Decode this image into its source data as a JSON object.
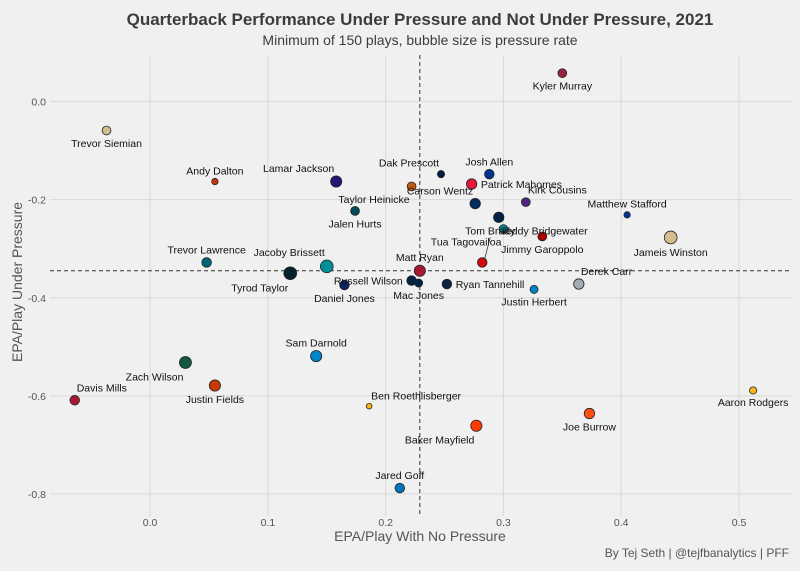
{
  "chart_data": {
    "type": "scatter",
    "title": "Quarterback Performance Under Pressure and Not Under Pressure, 2021",
    "subtitle": "Minimum of 150 plays, bubble size is pressure rate",
    "xlabel": "EPA/Play With No Pressure",
    "ylabel": "EPA/Play Under Pressure",
    "caption": "By Tej Seth | @tejfbanalytics | PFF",
    "xlim": [
      -0.085,
      0.545
    ],
    "ylim": [
      -0.845,
      0.095
    ],
    "x_ticks": [
      0.0,
      0.1,
      0.2,
      0.3,
      0.4,
      0.5
    ],
    "x_tick_labels": [
      "0.0",
      "0.1",
      "0.2",
      "0.3",
      "0.4",
      "0.5"
    ],
    "y_ticks": [
      0.0,
      -0.2,
      -0.4,
      -0.6,
      -0.8
    ],
    "y_tick_labels": [
      "0.0",
      "-0.2",
      "-0.4",
      "-0.6",
      "-0.8"
    ],
    "reference_lines": {
      "x_mean": 0.229,
      "y_mean": -0.345
    },
    "grid": true,
    "points": [
      {
        "name": "Kyler Murray",
        "x": 0.35,
        "y": 0.058,
        "size": 0.3,
        "color": "#97233f",
        "label_pos": "below"
      },
      {
        "name": "Trevor Siemian",
        "x": -0.037,
        "y": -0.059,
        "size": 0.3,
        "color": "#d3bc8d",
        "label_pos": "below"
      },
      {
        "name": "Andy Dalton",
        "x": 0.055,
        "y": -0.163,
        "size": 0.15,
        "color": "#c83803",
        "label_pos": "above"
      },
      {
        "name": "Lamar Jackson",
        "x": 0.158,
        "y": -0.163,
        "size": 0.45,
        "color": "#241773",
        "label_pos": "above-left"
      },
      {
        "name": "Dak Prescott",
        "x": 0.247,
        "y": -0.148,
        "size": 0.2,
        "color": "#041e42",
        "label_pos": "above-left"
      },
      {
        "name": "Josh Allen",
        "x": 0.288,
        "y": -0.148,
        "size": 0.35,
        "color": "#00338d",
        "label_pos": "above"
      },
      {
        "name": "Patrick Mahomes",
        "x": 0.273,
        "y": -0.168,
        "size": 0.4,
        "color": "#e31837",
        "label_pos": "right"
      },
      {
        "name": "Taylor Heinicke",
        "x": 0.222,
        "y": -0.173,
        "size": 0.3,
        "color": "#c55a11",
        "label_pos": "below-left"
      },
      {
        "name": "Carson Wentz",
        "x": 0.276,
        "y": -0.208,
        "size": 0.4,
        "color": "#002c5f",
        "label_pos": "above-left"
      },
      {
        "name": "Kirk Cousins",
        "x": 0.319,
        "y": -0.205,
        "size": 0.3,
        "color": "#4f2683",
        "label_pos": "above-right"
      },
      {
        "name": "Jalen Hurts",
        "x": 0.174,
        "y": -0.223,
        "size": 0.3,
        "color": "#004c54",
        "label_pos": "below"
      },
      {
        "name": "Matthew Stafford",
        "x": 0.405,
        "y": -0.231,
        "size": 0.15,
        "color": "#003594",
        "label_pos": "above"
      },
      {
        "name": "Teddy Bridgewater",
        "x": 0.296,
        "y": -0.236,
        "size": 0.4,
        "color": "#002244",
        "label_pos": "below-right"
      },
      {
        "name": "Tua Tagovailoa",
        "x": 0.3,
        "y": -0.26,
        "size": 0.3,
        "color": "#008e97",
        "label_pos": "below-left"
      },
      {
        "name": "Jimmy Garoppolo",
        "x": 0.333,
        "y": -0.275,
        "size": 0.3,
        "color": "#aa0000",
        "label_pos": "below"
      },
      {
        "name": "Jameis Winston",
        "x": 0.442,
        "y": -0.277,
        "size": 0.55,
        "color": "#d3bc8d",
        "label_pos": "below"
      },
      {
        "name": "Trevor Lawrence",
        "x": 0.048,
        "y": -0.328,
        "size": 0.35,
        "color": "#006778",
        "label_pos": "above"
      },
      {
        "name": "Jacoby Brissett",
        "x": 0.15,
        "y": -0.336,
        "size": 0.55,
        "color": "#008e97",
        "label_pos": "above-left"
      },
      {
        "name": "Tyrod Taylor",
        "x": 0.119,
        "y": -0.35,
        "size": 0.55,
        "color": "#03202f",
        "label_pos": "below-left"
      },
      {
        "name": "Matt Ryan",
        "x": 0.229,
        "y": -0.345,
        "size": 0.45,
        "color": "#a71930",
        "label_pos": "above"
      },
      {
        "name": "Russell Wilson",
        "x": 0.222,
        "y": -0.365,
        "size": 0.35,
        "color": "#002244",
        "label_pos": "left"
      },
      {
        "name": "Mac Jones",
        "x": 0.228,
        "y": -0.37,
        "size": 0.25,
        "color": "#002244",
        "label_pos": "below"
      },
      {
        "name": "Ryan Tannehill",
        "x": 0.252,
        "y": -0.372,
        "size": 0.35,
        "color": "#0c2340",
        "label_pos": "right"
      },
      {
        "name": "Tom Brady",
        "x": 0.282,
        "y": -0.328,
        "size": 0.35,
        "color": "#d50a0a",
        "label_pos": "leader"
      },
      {
        "name": "Derek Carr",
        "x": 0.364,
        "y": -0.372,
        "size": 0.4,
        "color": "#a5acaf",
        "label_pos": "above-right"
      },
      {
        "name": "Justin Herbert",
        "x": 0.326,
        "y": -0.383,
        "size": 0.25,
        "color": "#0080c6",
        "label_pos": "below"
      },
      {
        "name": "Daniel Jones",
        "x": 0.165,
        "y": -0.374,
        "size": 0.35,
        "color": "#0b2265",
        "label_pos": "below"
      },
      {
        "name": "Sam Darnold",
        "x": 0.141,
        "y": -0.519,
        "size": 0.45,
        "color": "#0085ca",
        "label_pos": "above"
      },
      {
        "name": "Zach Wilson",
        "x": 0.03,
        "y": -0.532,
        "size": 0.5,
        "color": "#125740",
        "label_pos": "below-left"
      },
      {
        "name": "Justin Fields",
        "x": 0.055,
        "y": -0.579,
        "size": 0.45,
        "color": "#c83803",
        "label_pos": "below"
      },
      {
        "name": "Davis Mills",
        "x": -0.064,
        "y": -0.609,
        "size": 0.35,
        "color": "#a71930",
        "label_pos": "above-right"
      },
      {
        "name": "Ben Roethlisberger",
        "x": 0.186,
        "y": -0.621,
        "size": 0.1,
        "color": "#ffb612",
        "label_pos": "above-right"
      },
      {
        "name": "Aaron Rodgers",
        "x": 0.512,
        "y": -0.589,
        "size": 0.2,
        "color": "#ffb612",
        "label_pos": "below"
      },
      {
        "name": "Joe Burrow",
        "x": 0.373,
        "y": -0.636,
        "size": 0.4,
        "color": "#fb4f14",
        "label_pos": "below"
      },
      {
        "name": "Baker Mayfield",
        "x": 0.277,
        "y": -0.661,
        "size": 0.45,
        "color": "#ff3c00",
        "label_pos": "below-left"
      },
      {
        "name": "Jared Goff",
        "x": 0.212,
        "y": -0.788,
        "size": 0.35,
        "color": "#0076b6",
        "label_pos": "above"
      }
    ]
  }
}
